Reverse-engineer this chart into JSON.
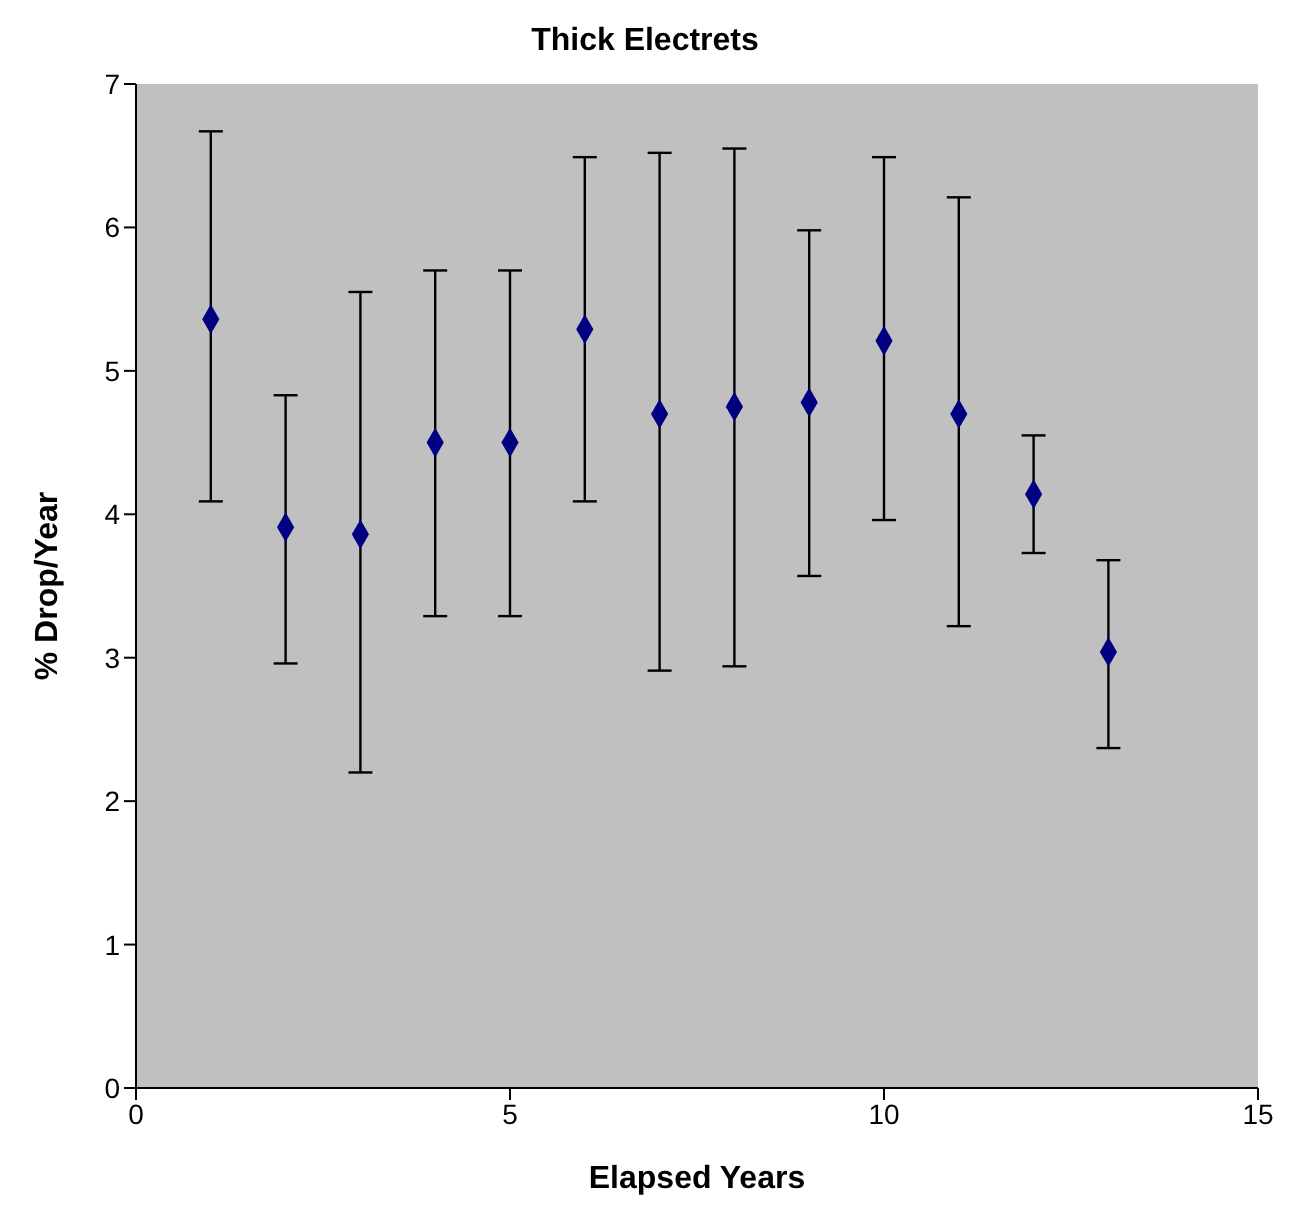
{
  "chart_data": {
    "type": "scatter",
    "title": "Thick Electrets",
    "xlabel": "Elapsed Years",
    "ylabel": "% Drop/Year",
    "x": [
      1,
      2,
      3,
      4,
      5,
      6,
      7,
      8,
      9,
      10,
      11,
      12,
      13
    ],
    "values": [
      5.36,
      3.91,
      3.86,
      4.5,
      4.5,
      5.29,
      4.7,
      4.75,
      4.78,
      5.21,
      4.7,
      4.14,
      3.04
    ],
    "errors": [
      [
        4.09,
        6.67
      ],
      [
        2.96,
        4.83
      ],
      [
        2.2,
        5.55
      ],
      [
        3.29,
        5.7
      ],
      [
        3.29,
        5.7
      ],
      [
        4.09,
        6.49
      ],
      [
        2.91,
        6.52
      ],
      [
        2.94,
        6.55
      ],
      [
        3.57,
        5.98
      ],
      [
        3.96,
        6.49
      ],
      [
        3.22,
        6.21
      ],
      [
        3.73,
        4.55
      ],
      [
        2.37,
        3.68
      ]
    ],
    "color": "#000080",
    "marker": "diamond",
    "xlim": [
      0,
      15
    ],
    "xticks": [
      0,
      5,
      10,
      15
    ],
    "ylim": [
      0,
      7
    ],
    "yticks": [
      0,
      1,
      2,
      3,
      4,
      5,
      6,
      7
    ],
    "grid": false,
    "legend": false
  }
}
